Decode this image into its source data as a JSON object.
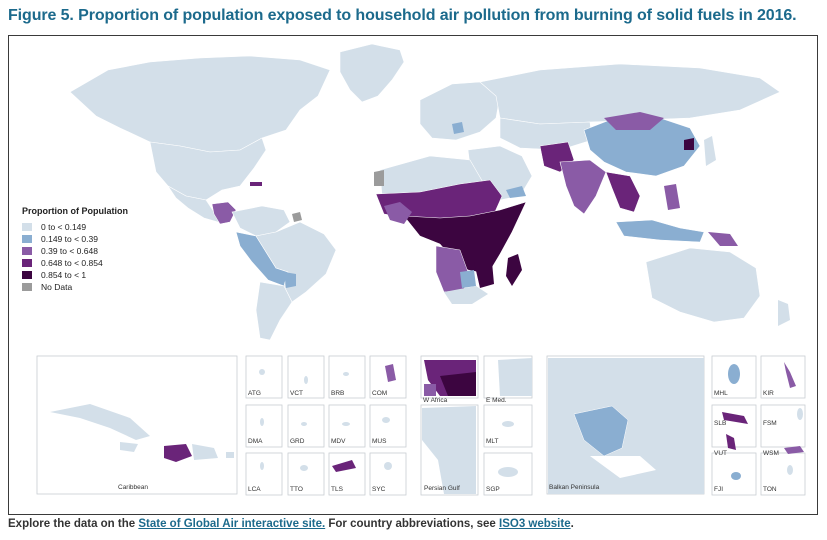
{
  "title": "Figure 5. Proportion of population exposed to household air pollution from burning of solid fuels in 2016.",
  "legend": {
    "title": "Proportion of Population",
    "items": [
      {
        "label": "0 to < 0.149",
        "color": "#d3dfe9"
      },
      {
        "label": "0.149 to < 0.39",
        "color": "#8aaed1"
      },
      {
        "label": "0.39 to < 0.648",
        "color": "#8a5ba6"
      },
      {
        "label": "0.648 to < 0.854",
        "color": "#6a2479"
      },
      {
        "label": "0.854 to < 1",
        "color": "#3c0540"
      },
      {
        "label": "No Data",
        "color": "#9b9b9b"
      }
    ]
  },
  "insets": {
    "caribbean": "Caribbean",
    "small": [
      "ATG",
      "VCT",
      "BRB",
      "COM",
      "DMA",
      "GRD",
      "MDV",
      "MUS",
      "LCA",
      "TTO",
      "TLS",
      "SYC"
    ],
    "w_africa": "W Africa",
    "e_med": "E Med.",
    "persian_gulf": "Persian Gulf",
    "mlt": "MLT",
    "sgp": "SGP",
    "balkan": "Balkan Peninsula",
    "pacific": [
      "MHL",
      "KIR",
      "SLB",
      "FSM",
      "VUT",
      "WSM",
      "FJI",
      "TON"
    ]
  },
  "footer": {
    "prefix": "Explore the data on the ",
    "link1": "State of Global Air interactive site.",
    "middle": " For country abbreviations, see ",
    "link2": "ISO3 website",
    "suffix": "."
  }
}
